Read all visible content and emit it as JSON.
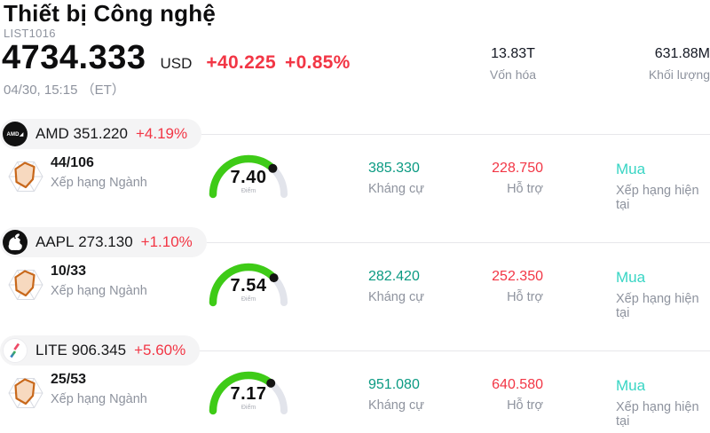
{
  "header": {
    "title": "Thiết bị Công nghệ",
    "list_id": "LIST1016",
    "price": "4734.333",
    "currency": "USD",
    "change": "+40.225",
    "change_pct": "+0.85%",
    "datetime": "04/30, 15:15 （ET）",
    "stats": [
      {
        "value": "13.83T",
        "label": "Vốn hóa"
      },
      {
        "value": "631.88M",
        "label": "Khối lượng"
      }
    ]
  },
  "colors": {
    "change_up": "#f23645",
    "support_red": "#f23645",
    "resistance_green": "#0a9a82",
    "rating_teal": "#38d5c4",
    "gauge_green": "#3ecb17",
    "gauge_track": "#e2e4eb",
    "pill_bg": "#f4f4f5"
  },
  "rows": [
    {
      "symbol": "AMD",
      "price": "351.220",
      "change": "+4.19%",
      "logo": "amd-logo-icon",
      "rank": "44/106",
      "rank_label": "Xếp hạng Ngành",
      "score": "7.40",
      "score_label": "Điểm",
      "resistance": "385.330",
      "resistance_label": "Kháng cự",
      "support": "228.750",
      "support_label": "Hỗ trợ",
      "rating": "Mua",
      "rating_label": "Xếp hạng hiện tại"
    },
    {
      "symbol": "AAPL",
      "price": "273.130",
      "change": "+1.10%",
      "logo": "apple-logo-icon",
      "rank": "10/33",
      "rank_label": "Xếp hạng Ngành",
      "score": "7.54",
      "score_label": "Điểm",
      "resistance": "282.420",
      "resistance_label": "Kháng cự",
      "support": "252.350",
      "support_label": "Hỗ trợ",
      "rating": "Mua",
      "rating_label": "Xếp hạng hiện tại"
    },
    {
      "symbol": "LITE",
      "price": "906.345",
      "change": "+5.60%",
      "logo": "lumentum-logo-icon",
      "rank": "25/53",
      "rank_label": "Xếp hạng Ngành",
      "score": "7.17",
      "score_label": "Điểm",
      "resistance": "951.080",
      "resistance_label": "Kháng cự",
      "support": "640.580",
      "support_label": "Hỗ trợ",
      "rating": "Mua",
      "rating_label": "Xếp hạng hiện tại"
    }
  ]
}
